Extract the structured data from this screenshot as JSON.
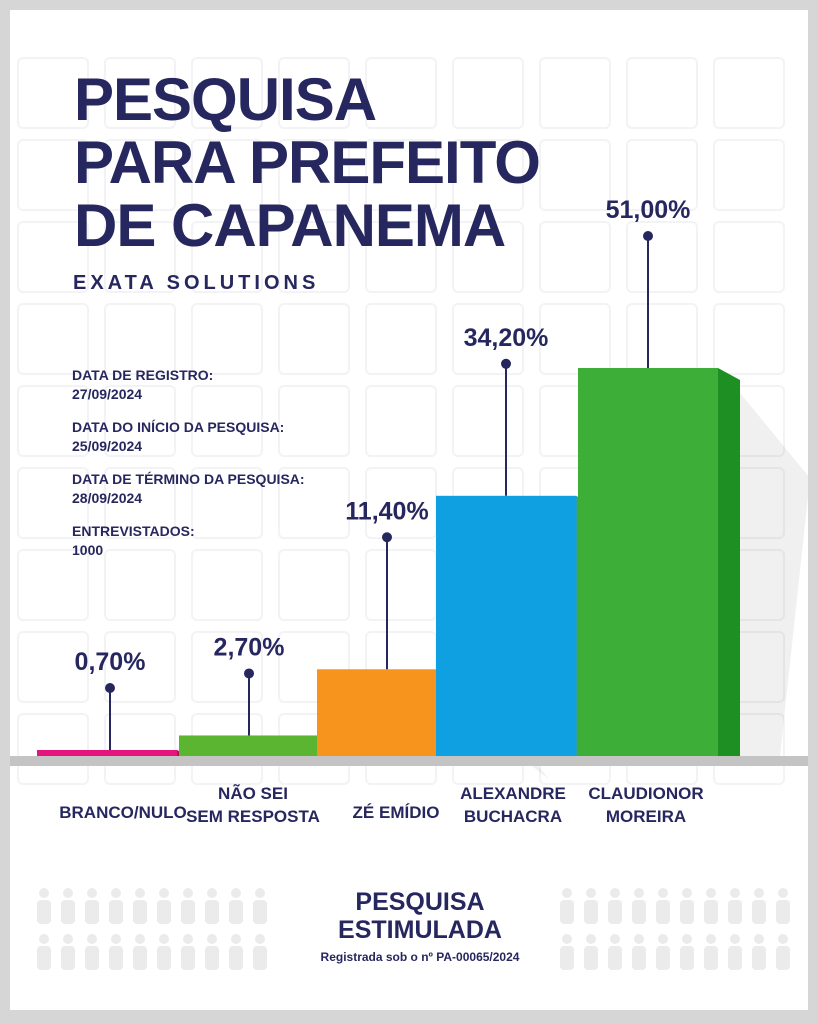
{
  "poster": {
    "title_lines": [
      "PESQUISA",
      "PARA PREFEITO",
      "DE CAPANEMA"
    ],
    "subtitle": "EXATA SOLUTIONS",
    "info": [
      {
        "label": "DATA DE REGISTRO:",
        "value": "27/09/2024"
      },
      {
        "label": "DATA DO INÍCIO DA PESQUISA:",
        "value": "25/09/2024"
      },
      {
        "label": "DATA DE TÉRMINO DA PESQUISA:",
        "value": "28/09/2024"
      },
      {
        "label": "ENTREVISTADOS:",
        "value": "1000"
      }
    ],
    "footer": {
      "title_lines": [
        "PESQUISA",
        "ESTIMULADA"
      ],
      "registration": "Registrada sob o nº PA-00065/2024"
    }
  },
  "chart_data": {
    "type": "bar",
    "title": "PESQUISA PARA PREFEITO DE CAPANEMA",
    "ylabel": "",
    "xlabel": "",
    "ylim": [
      0,
      51
    ],
    "categories": [
      [
        "BRANCO/NULO"
      ],
      [
        "NÃO SEI",
        "SEM RESPOSTA"
      ],
      [
        "ZÉ EMÍDIO"
      ],
      [
        "ALEXANDRE",
        "BUCHACRA"
      ],
      [
        "CLAUDIONOR",
        "MOREIRA"
      ]
    ],
    "values": [
      0.7,
      2.7,
      11.4,
      34.2,
      51.0
    ],
    "value_labels": [
      "0,70%",
      "2,70%",
      "11,40%",
      "34,20%",
      "51,00%"
    ],
    "colors": [
      "#e4147f",
      "#5cb531",
      "#f7941d",
      "#0fa0e2",
      "#3daf38"
    ],
    "side_colors": [
      "#b1105f",
      "#44922a",
      "#d97508",
      "#2a9fb0",
      "#1e8f23"
    ]
  }
}
